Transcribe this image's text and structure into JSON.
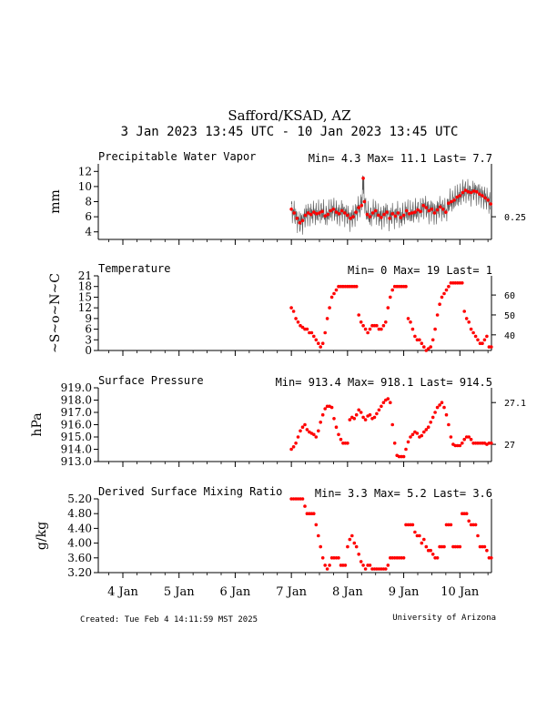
{
  "header": {
    "title": "Safford/KSAD, AZ",
    "subtitle": "3 Jan 2023 13:45 UTC - 10 Jan 2023 13:45 UTC"
  },
  "footer": {
    "created": "Created: Tue Feb  4 14:11:59 MST 2025",
    "credit": "University of Arizona"
  },
  "x_axis": {
    "ticks": [
      {
        "label": "4 Jan",
        "day": 4
      },
      {
        "label": "5 Jan",
        "day": 5
      },
      {
        "label": "6 Jan",
        "day": 6
      },
      {
        "label": "7 Jan",
        "day": 7
      },
      {
        "label": "8 Jan",
        "day": 8
      },
      {
        "label": "9 Jan",
        "day": 9
      },
      {
        "label": "10 Jan",
        "day": 10
      }
    ]
  },
  "colors": {
    "points": "#ff0000",
    "raw_trace": "#555555",
    "axes": "#000000"
  },
  "chart_data": [
    {
      "type": "scatter",
      "title": "Precipitable Water Vapor",
      "stats": "Min= 4.3 Max= 11.1 Last= 7.7",
      "ylabel": "mm",
      "ylim": [
        3,
        13
      ],
      "yticks": [
        "4",
        "6",
        "8",
        "10",
        "12"
      ],
      "right_ticks": [
        {
          "label": "0.25",
          "y": 6.0
        }
      ],
      "has_raw_trace": true,
      "x": [
        7.0,
        7.05,
        7.1,
        7.15,
        7.2,
        7.25,
        7.3,
        7.35,
        7.4,
        7.45,
        7.5,
        7.55,
        7.6,
        7.65,
        7.7,
        7.75,
        7.8,
        7.85,
        7.9,
        7.95,
        8.0,
        8.05,
        8.1,
        8.15,
        8.2,
        8.25,
        8.28,
        8.3,
        8.35,
        8.4,
        8.45,
        8.5,
        8.55,
        8.6,
        8.65,
        8.7,
        8.75,
        8.8,
        8.85,
        8.9,
        8.95,
        9.0,
        9.05,
        9.1,
        9.15,
        9.2,
        9.25,
        9.3,
        9.35,
        9.4,
        9.45,
        9.5,
        9.55,
        9.6,
        9.65,
        9.7,
        9.75,
        9.8,
        9.85,
        9.9,
        9.95,
        10.0,
        10.05,
        10.1,
        10.15,
        10.2,
        10.25,
        10.3,
        10.35,
        10.4,
        10.45,
        10.5,
        10.55
      ],
      "y": [
        7.0,
        6.5,
        5.8,
        5.2,
        5.5,
        6.2,
        6.5,
        6.3,
        6.6,
        6.4,
        6.5,
        6.7,
        6.1,
        6.3,
        6.8,
        7.0,
        6.6,
        6.4,
        6.8,
        6.5,
        6.2,
        5.8,
        6.0,
        6.6,
        7.2,
        7.5,
        11.1,
        8.0,
        6.3,
        6.0,
        6.5,
        6.8,
        6.2,
        5.9,
        6.3,
        6.6,
        5.8,
        6.4,
        6.1,
        6.5,
        5.9,
        6.2,
        6.8,
        6.4,
        6.5,
        6.6,
        6.9,
        6.7,
        7.5,
        7.2,
        6.8,
        7.0,
        6.5,
        6.9,
        7.3,
        7.0,
        6.6,
        7.8,
        8.0,
        8.2,
        8.6,
        8.8,
        9.2,
        9.5,
        9.3,
        9.2,
        9.4,
        9.3,
        9.0,
        8.8,
        8.5,
        8.2,
        7.7
      ]
    },
    {
      "type": "scatter",
      "title": "Temperature",
      "stats": "Min= 0 Max= 19 Last= 1",
      "ylabel": "~S~o~N~C",
      "ylim": [
        0,
        21
      ],
      "yticks": [
        "0",
        "3",
        "6",
        "9",
        "12",
        "15",
        "18",
        "21"
      ],
      "right_ticks": [
        {
          "label": "40",
          "y": 4.4
        },
        {
          "label": "50",
          "y": 10.0
        },
        {
          "label": "60",
          "y": 15.6
        }
      ],
      "has_raw_trace": false,
      "x": [
        7.0,
        7.04,
        7.08,
        7.12,
        7.16,
        7.2,
        7.24,
        7.28,
        7.32,
        7.36,
        7.4,
        7.44,
        7.48,
        7.52,
        7.56,
        7.6,
        7.64,
        7.68,
        7.72,
        7.76,
        7.8,
        7.84,
        7.88,
        7.92,
        7.96,
        8.0,
        8.04,
        8.08,
        8.12,
        8.16,
        8.2,
        8.24,
        8.28,
        8.32,
        8.36,
        8.4,
        8.44,
        8.48,
        8.52,
        8.56,
        8.6,
        8.64,
        8.68,
        8.72,
        8.76,
        8.8,
        8.84,
        8.88,
        8.92,
        8.96,
        9.0,
        9.04,
        9.08,
        9.12,
        9.16,
        9.2,
        9.24,
        9.28,
        9.32,
        9.36,
        9.4,
        9.44,
        9.48,
        9.52,
        9.56,
        9.6,
        9.64,
        9.68,
        9.72,
        9.76,
        9.8,
        9.84,
        9.88,
        9.92,
        9.96,
        10.0,
        10.04,
        10.08,
        10.12,
        10.16,
        10.2,
        10.24,
        10.28,
        10.32,
        10.36,
        10.4,
        10.44,
        10.48,
        10.52,
        10.56
      ],
      "y": [
        12,
        11,
        9,
        8,
        7,
        6.5,
        6,
        6,
        5,
        5,
        4,
        3,
        2,
        1,
        2,
        5,
        9,
        12,
        15,
        16,
        17,
        18,
        18,
        18,
        18,
        18,
        18,
        18,
        18,
        18,
        10,
        8,
        7,
        6,
        5,
        6,
        7,
        7,
        7,
        6,
        6,
        7,
        8,
        12,
        15,
        17,
        18,
        18,
        18,
        18,
        18,
        18,
        9,
        8,
        6,
        4,
        3,
        3,
        2,
        1,
        0,
        0.5,
        1,
        3,
        6,
        10,
        13,
        15,
        16,
        17,
        18,
        19,
        19,
        19,
        19,
        19,
        19,
        11,
        9,
        8,
        6,
        5,
        4,
        3,
        2,
        2,
        3,
        4,
        1,
        1
      ]
    },
    {
      "type": "scatter",
      "title": "Surface Pressure",
      "stats": "Min= 913.4 Max= 918.1 Last= 914.5",
      "ylabel": "hPa",
      "ylim": [
        913.0,
        919.0
      ],
      "yticks": [
        "913.0",
        "914.0",
        "915.0",
        "916.0",
        "917.0",
        "918.0",
        "919.0"
      ],
      "right_ticks": [
        {
          "label": "27",
          "y": 914.4
        },
        {
          "label": "27.1",
          "y": 917.8
        }
      ],
      "has_raw_trace": false,
      "x": [
        7.0,
        7.04,
        7.08,
        7.12,
        7.16,
        7.2,
        7.24,
        7.28,
        7.32,
        7.36,
        7.4,
        7.44,
        7.48,
        7.52,
        7.56,
        7.6,
        7.64,
        7.68,
        7.72,
        7.76,
        7.8,
        7.84,
        7.88,
        7.92,
        7.96,
        8.0,
        8.04,
        8.08,
        8.12,
        8.16,
        8.2,
        8.24,
        8.28,
        8.32,
        8.36,
        8.4,
        8.44,
        8.48,
        8.52,
        8.56,
        8.6,
        8.64,
        8.68,
        8.72,
        8.76,
        8.8,
        8.84,
        8.88,
        8.92,
        8.96,
        9.0,
        9.04,
        9.08,
        9.12,
        9.16,
        9.2,
        9.24,
        9.28,
        9.32,
        9.36,
        9.4,
        9.44,
        9.48,
        9.52,
        9.56,
        9.6,
        9.64,
        9.68,
        9.72,
        9.76,
        9.8,
        9.84,
        9.88,
        9.92,
        9.96,
        10.0,
        10.04,
        10.08,
        10.12,
        10.16,
        10.2,
        10.24,
        10.28,
        10.32,
        10.36,
        10.4,
        10.44,
        10.48,
        10.52,
        10.56
      ],
      "y": [
        914.0,
        914.2,
        914.5,
        915.0,
        915.5,
        915.8,
        916.0,
        915.6,
        915.4,
        915.3,
        915.2,
        915.0,
        915.5,
        916.2,
        916.8,
        917.3,
        917.5,
        917.5,
        917.4,
        916.5,
        915.8,
        915.2,
        914.8,
        914.5,
        914.5,
        914.5,
        916.4,
        916.6,
        916.5,
        916.8,
        917.2,
        917.0,
        916.6,
        916.4,
        916.7,
        916.8,
        916.5,
        916.6,
        916.9,
        917.2,
        917.5,
        917.8,
        918.0,
        918.1,
        917.8,
        916.0,
        914.5,
        913.5,
        913.4,
        913.4,
        913.4,
        914.0,
        914.6,
        915.0,
        915.2,
        915.4,
        915.3,
        915.0,
        915.1,
        915.4,
        915.6,
        915.8,
        916.2,
        916.6,
        917.0,
        917.4,
        917.6,
        917.8,
        917.4,
        916.8,
        916.0,
        915.0,
        914.4,
        914.3,
        914.3,
        914.3,
        914.5,
        914.8,
        915.0,
        915.0,
        914.8,
        914.5,
        914.5,
        914.5,
        914.5,
        914.5,
        914.5,
        914.4,
        914.5,
        914.5
      ]
    },
    {
      "type": "scatter",
      "title": "Derived Surface Mixing Ratio",
      "stats": "Min= 3.3 Max= 5.2 Last= 3.6",
      "ylabel": "g/kg",
      "ylim": [
        3.2,
        5.2
      ],
      "yticks": [
        "3.20",
        "3.60",
        "4.00",
        "4.40",
        "4.80",
        "5.20"
      ],
      "right_ticks": [],
      "has_raw_trace": false,
      "x": [
        7.0,
        7.04,
        7.08,
        7.12,
        7.16,
        7.2,
        7.24,
        7.28,
        7.32,
        7.36,
        7.4,
        7.44,
        7.48,
        7.52,
        7.56,
        7.6,
        7.64,
        7.68,
        7.72,
        7.76,
        7.8,
        7.84,
        7.88,
        7.92,
        7.96,
        8.0,
        8.04,
        8.08,
        8.12,
        8.16,
        8.2,
        8.24,
        8.28,
        8.32,
        8.36,
        8.4,
        8.44,
        8.48,
        8.52,
        8.56,
        8.6,
        8.64,
        8.68,
        8.72,
        8.76,
        8.8,
        8.84,
        8.88,
        8.92,
        8.96,
        9.0,
        9.04,
        9.08,
        9.12,
        9.16,
        9.2,
        9.24,
        9.28,
        9.32,
        9.36,
        9.4,
        9.44,
        9.48,
        9.52,
        9.56,
        9.6,
        9.64,
        9.68,
        9.72,
        9.76,
        9.8,
        9.84,
        9.88,
        9.92,
        9.96,
        10.0,
        10.04,
        10.08,
        10.12,
        10.16,
        10.2,
        10.24,
        10.28,
        10.32,
        10.36,
        10.4,
        10.44,
        10.48,
        10.52,
        10.56
      ],
      "y": [
        5.2,
        5.2,
        5.2,
        5.2,
        5.2,
        5.2,
        5.0,
        4.8,
        4.8,
        4.8,
        4.8,
        4.5,
        4.2,
        3.9,
        3.6,
        3.4,
        3.3,
        3.4,
        3.6,
        3.6,
        3.6,
        3.6,
        3.4,
        3.4,
        3.4,
        3.9,
        4.1,
        4.2,
        4.0,
        3.9,
        3.7,
        3.5,
        3.4,
        3.3,
        3.4,
        3.4,
        3.3,
        3.3,
        3.3,
        3.3,
        3.3,
        3.3,
        3.3,
        3.4,
        3.6,
        3.6,
        3.6,
        3.6,
        3.6,
        3.6,
        3.6,
        4.5,
        4.5,
        4.5,
        4.5,
        4.3,
        4.2,
        4.2,
        4.0,
        4.1,
        3.9,
        3.8,
        3.8,
        3.7,
        3.6,
        3.6,
        3.9,
        3.9,
        3.9,
        4.5,
        4.5,
        4.5,
        3.9,
        3.9,
        3.9,
        3.9,
        4.8,
        4.8,
        4.8,
        4.6,
        4.5,
        4.5,
        4.5,
        4.2,
        3.9,
        3.9,
        3.9,
        3.8,
        3.6,
        3.6
      ]
    }
  ]
}
